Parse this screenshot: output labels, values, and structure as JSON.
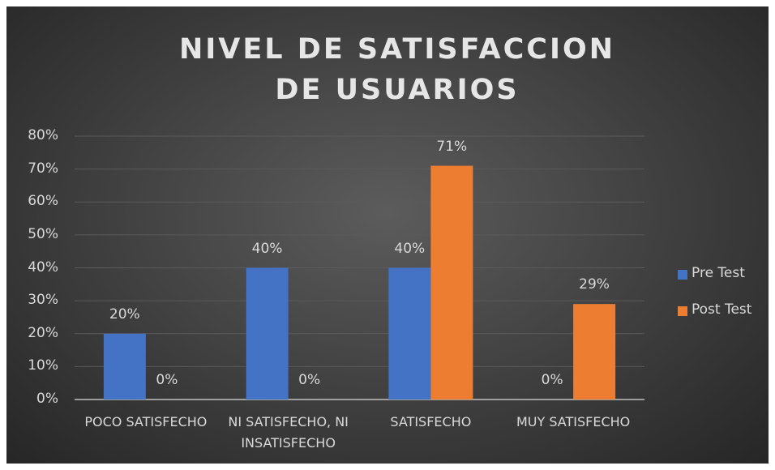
{
  "chart_data": {
    "type": "bar",
    "title": "NIVEL DE SATISFACCION DE USUARIOS",
    "categories": [
      "POCO SATISFECHO",
      "NI SATISFECHO, NI INSATISFECHO",
      "SATISFECHO",
      "MUY SATISFECHO"
    ],
    "series": [
      {
        "name": "Pre Test",
        "color": "#4472c4",
        "values": [
          20,
          40,
          40,
          0
        ],
        "value_labels": [
          "20%",
          "40%",
          "40%",
          "0%"
        ]
      },
      {
        "name": "Post Test",
        "color": "#ed7d31",
        "values": [
          0,
          0,
          71,
          29
        ],
        "value_labels": [
          "0%",
          "0%",
          "71%",
          "29%"
        ]
      }
    ],
    "ylim": [
      0,
      80
    ],
    "yticks": [
      {
        "value": 0,
        "label": "0%"
      },
      {
        "value": 10,
        "label": "10%"
      },
      {
        "value": 20,
        "label": "20%"
      },
      {
        "value": 30,
        "label": "30%"
      },
      {
        "value": 40,
        "label": "40%"
      },
      {
        "value": 50,
        "label": "50%"
      },
      {
        "value": 60,
        "label": "60%"
      },
      {
        "value": 70,
        "label": "70%"
      },
      {
        "value": 80,
        "label": "80%"
      }
    ],
    "grid": true,
    "legend": "right"
  }
}
